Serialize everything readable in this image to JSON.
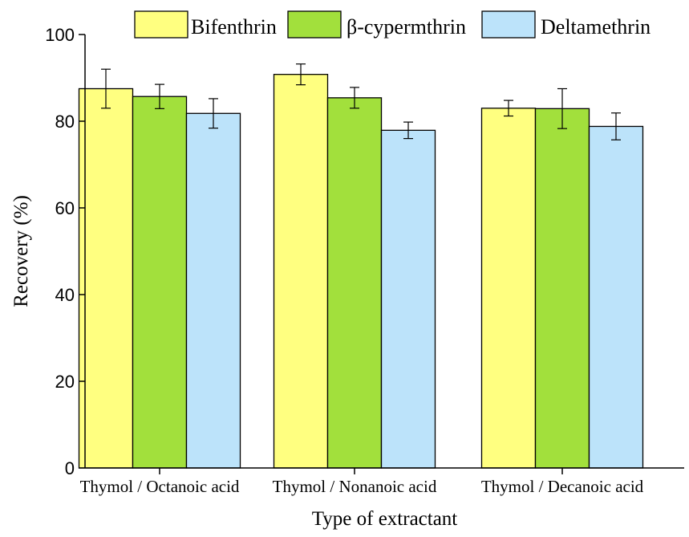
{
  "chart_data": {
    "type": "bar",
    "xlabel": "Type of extractant",
    "ylabel": "Recovery (%)",
    "ylim": [
      0,
      100
    ],
    "yticks": [
      0,
      20,
      40,
      60,
      80,
      100
    ],
    "grid": false,
    "legend_position": "top",
    "categories": [
      "Thymol / Octanoic acid",
      "Thymol / Nonanoic acid",
      "Thymol / Decanoic acid"
    ],
    "series": [
      {
        "name": "Bifenthrin",
        "color": "#FFFF80",
        "values": [
          87.5,
          90.8,
          83.0
        ],
        "errors": [
          4.5,
          2.4,
          1.8
        ]
      },
      {
        "name": "β-cypermthrin",
        "color": "#A2E03C",
        "values": [
          85.7,
          85.4,
          82.9
        ],
        "errors": [
          2.8,
          2.4,
          4.6
        ]
      },
      {
        "name": "Deltamethrin",
        "color": "#BCE3FA",
        "values": [
          81.8,
          77.9,
          78.8
        ],
        "errors": [
          3.4,
          1.9,
          3.1
        ]
      }
    ]
  }
}
